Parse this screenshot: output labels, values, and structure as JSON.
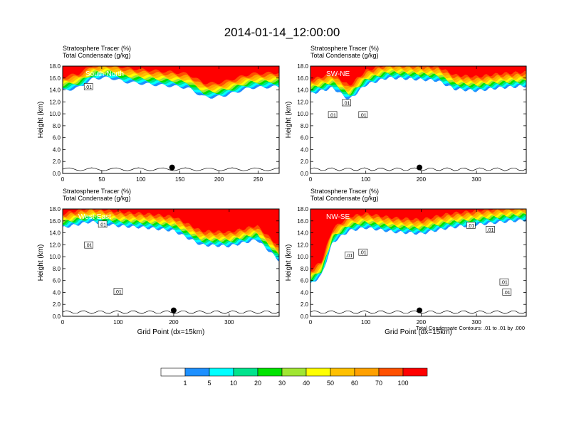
{
  "figure": {
    "title": "2014-01-14_12:00:00",
    "footnote": "Total Condensate Contours: .01 to .01 by .000"
  },
  "colors": {
    "levels": [
      "#ffffff",
      "#1e90ff",
      "#00ffff",
      "#00e38c",
      "#00e300",
      "#a0e632",
      "#ffff00",
      "#ffc000",
      "#ffa000",
      "#ff5000",
      "#ff0000"
    ]
  },
  "chart_data": [
    {
      "type": "heatmap",
      "panel_label": "South-North",
      "title_line1": "Stratosphere Tracer   (%)",
      "title_line2": "Total Condensate   (g/kg)",
      "ylabel": "Height (km)",
      "xlabel": "",
      "xlim": [
        0,
        277
      ],
      "ylim": [
        0,
        18
      ],
      "xticks": [
        0,
        50,
        100,
        150,
        200,
        250
      ],
      "yticks": [
        "0.0",
        "2.0",
        "4.0",
        "6.0",
        "8.0",
        "10.0",
        "12.0",
        "14.0",
        "16.0",
        "18.0"
      ],
      "profile": [
        [
          0,
          13.5
        ],
        [
          20,
          14.0
        ],
        [
          40,
          15.6
        ],
        [
          60,
          15.7
        ],
        [
          80,
          15.0
        ],
        [
          110,
          14.6
        ],
        [
          140,
          14.3
        ],
        [
          160,
          14.0
        ],
        [
          180,
          12.5
        ],
        [
          195,
          12.4
        ],
        [
          210,
          12.8
        ],
        [
          240,
          14.0
        ],
        [
          277,
          14.2
        ]
      ],
      "contour_labels": [
        {
          "x": 33,
          "y": 14.5,
          "text": ".01"
        }
      ],
      "marker": {
        "x": 140,
        "y": 1.0
      }
    },
    {
      "type": "heatmap",
      "panel_label": "SW-NE",
      "title_line1": "Stratosphere Tracer   (%)",
      "title_line2": "Total Condensate   (g/kg)",
      "ylabel": "Height (km)",
      "xlabel": "",
      "xlim": [
        0,
        390
      ],
      "ylim": [
        0,
        18
      ],
      "xticks": [
        0,
        100,
        200,
        300
      ],
      "yticks": [
        "0.0",
        "2.0",
        "4.0",
        "6.0",
        "8.0",
        "10.0",
        "12.0",
        "14.0",
        "16.0",
        "18.0"
      ],
      "profile": [
        [
          0,
          13.0
        ],
        [
          40,
          14.0
        ],
        [
          70,
          12.0
        ],
        [
          100,
          14.5
        ],
        [
          140,
          15.7
        ],
        [
          180,
          15.5
        ],
        [
          230,
          15.2
        ],
        [
          260,
          13.8
        ],
        [
          300,
          13.5
        ],
        [
          340,
          14.0
        ],
        [
          390,
          14.3
        ]
      ],
      "contour_labels": [
        {
          "x": 40,
          "y": 9.8,
          "text": ".01"
        },
        {
          "x": 65,
          "y": 11.8,
          "text": ".01"
        },
        {
          "x": 95,
          "y": 9.8,
          "text": ".01"
        }
      ],
      "marker": {
        "x": 197,
        "y": 1.0
      }
    },
    {
      "type": "heatmap",
      "panel_label": "West-East",
      "title_line1": "Stratosphere Tracer   (%)",
      "title_line2": "Total Condensate   (g/kg)",
      "ylabel": "Height (km)",
      "xlabel": "Grid Point (dx=15km)",
      "xlim": [
        0,
        390
      ],
      "ylim": [
        0,
        18
      ],
      "xticks": [
        0,
        100,
        200,
        300
      ],
      "yticks": [
        "0.0",
        "2.0",
        "4.0",
        "6.0",
        "8.0",
        "10.0",
        "12.0",
        "14.0",
        "16.0",
        "18.0"
      ],
      "profile": [
        [
          0,
          14.5
        ],
        [
          50,
          15.5
        ],
        [
          100,
          14.8
        ],
        [
          150,
          14.5
        ],
        [
          200,
          14.0
        ],
        [
          250,
          11.6
        ],
        [
          300,
          11.4
        ],
        [
          350,
          12.5
        ],
        [
          390,
          9.0
        ]
      ],
      "contour_labels": [
        {
          "x": 72,
          "y": 15.4,
          "text": ".01"
        },
        {
          "x": 47,
          "y": 11.9,
          "text": ".01"
        },
        {
          "x": 100,
          "y": 4.1,
          "text": ".01"
        }
      ],
      "marker": {
        "x": 200,
        "y": 1.0
      }
    },
    {
      "type": "heatmap",
      "panel_label": "NW-SE",
      "title_line1": "Stratosphere Tracer   (%)",
      "title_line2": "Total Condensate   (g/kg)",
      "ylabel": "Height (km)",
      "xlabel": "Grid Point (dx=15km)",
      "xlim": [
        0,
        390
      ],
      "ylim": [
        0,
        18
      ],
      "xticks": [
        0,
        100,
        200,
        300
      ],
      "yticks": [
        "0.0",
        "2.0",
        "4.0",
        "6.0",
        "8.0",
        "10.0",
        "12.0",
        "14.0",
        "16.0",
        "18.0"
      ],
      "profile": [
        [
          0,
          5.0
        ],
        [
          20,
          6.5
        ],
        [
          40,
          12.0
        ],
        [
          70,
          14.0
        ],
        [
          100,
          14.5
        ],
        [
          150,
          13.8
        ],
        [
          200,
          13.5
        ],
        [
          250,
          14.5
        ],
        [
          300,
          15.0
        ],
        [
          350,
          15.5
        ],
        [
          390,
          15.8
        ]
      ],
      "contour_labels": [
        {
          "x": 290,
          "y": 15.2,
          "text": ".01"
        },
        {
          "x": 325,
          "y": 14.5,
          "text": ".01"
        },
        {
          "x": 70,
          "y": 10.2,
          "text": ".01"
        },
        {
          "x": 95,
          "y": 10.7,
          "text": ".01"
        },
        {
          "x": 350,
          "y": 5.7,
          "text": ".01"
        },
        {
          "x": 355,
          "y": 4.0,
          "text": ".01"
        }
      ],
      "marker": {
        "x": 197,
        "y": 1.0
      }
    }
  ],
  "colorbar": {
    "labels": [
      "1",
      "5",
      "10",
      "20",
      "30",
      "40",
      "50",
      "60",
      "70",
      "100"
    ]
  }
}
